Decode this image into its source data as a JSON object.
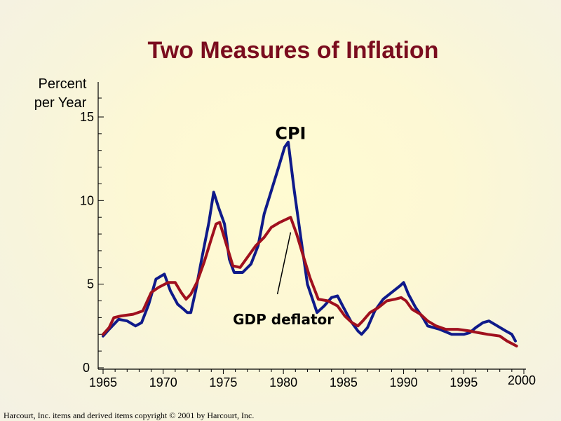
{
  "chart_data": {
    "type": "line",
    "title": "Two Measures of Inflation",
    "ylabel_line1": "Percent",
    "ylabel_line2": "per Year",
    "xlabel": "",
    "xlim": [
      1965,
      2000
    ],
    "ylim": [
      0,
      15
    ],
    "x_ticks": [
      1965,
      1970,
      1975,
      1980,
      1985,
      1990,
      1995,
      2000
    ],
    "x_tick_labels": [
      "1965",
      "1970",
      "1975",
      "1980",
      "1985",
      "1990",
      "1995",
      "2000"
    ],
    "y_ticks": [
      0,
      5,
      10,
      15
    ],
    "y_tick_labels": [
      "0",
      "5",
      "10",
      "15"
    ],
    "grid": false,
    "series": [
      {
        "name": "CPI",
        "color": "#0f1a8a",
        "points": [
          [
            1965.0,
            1.9
          ],
          [
            1965.5,
            2.3
          ],
          [
            1966.3,
            2.9
          ],
          [
            1967.0,
            2.8
          ],
          [
            1967.7,
            2.5
          ],
          [
            1968.2,
            2.7
          ],
          [
            1968.8,
            3.8
          ],
          [
            1969.4,
            5.3
          ],
          [
            1970.1,
            5.6
          ],
          [
            1970.6,
            4.6
          ],
          [
            1971.2,
            3.8
          ],
          [
            1971.7,
            3.5
          ],
          [
            1972.0,
            3.3
          ],
          [
            1972.3,
            3.3
          ],
          [
            1972.7,
            4.6
          ],
          [
            1973.2,
            6.5
          ],
          [
            1973.8,
            8.7
          ],
          [
            1974.2,
            10.5
          ],
          [
            1974.6,
            9.6
          ],
          [
            1975.1,
            8.6
          ],
          [
            1975.5,
            6.5
          ],
          [
            1975.9,
            5.7
          ],
          [
            1976.6,
            5.7
          ],
          [
            1977.3,
            6.2
          ],
          [
            1977.9,
            7.3
          ],
          [
            1978.4,
            9.2
          ],
          [
            1979.0,
            10.6
          ],
          [
            1979.6,
            12.0
          ],
          [
            1980.1,
            13.2
          ],
          [
            1980.4,
            13.5
          ],
          [
            1980.9,
            10.6
          ],
          [
            1981.5,
            7.5
          ],
          [
            1982.0,
            5.0
          ],
          [
            1982.8,
            3.3
          ],
          [
            1983.4,
            3.7
          ],
          [
            1984.0,
            4.2
          ],
          [
            1984.5,
            4.3
          ],
          [
            1985.0,
            3.6
          ],
          [
            1985.6,
            2.8
          ],
          [
            1986.2,
            2.2
          ],
          [
            1986.5,
            2.0
          ],
          [
            1987.0,
            2.4
          ],
          [
            1987.6,
            3.4
          ],
          [
            1988.3,
            4.1
          ],
          [
            1989.0,
            4.5
          ],
          [
            1989.7,
            4.9
          ],
          [
            1990.0,
            5.1
          ],
          [
            1990.4,
            4.4
          ],
          [
            1991.0,
            3.6
          ],
          [
            1991.6,
            3.0
          ],
          [
            1992.0,
            2.5
          ],
          [
            1993.0,
            2.3
          ],
          [
            1994.0,
            2.0
          ],
          [
            1995.0,
            2.0
          ],
          [
            1995.5,
            2.1
          ],
          [
            1996.0,
            2.4
          ],
          [
            1996.6,
            2.7
          ],
          [
            1997.1,
            2.8
          ],
          [
            1997.8,
            2.5
          ],
          [
            1998.5,
            2.2
          ],
          [
            1999.0,
            2.0
          ],
          [
            1999.3,
            1.6
          ]
        ]
      },
      {
        "name": "GDP deflator",
        "color": "#a0101e",
        "points": [
          [
            1965.0,
            2.0
          ],
          [
            1965.5,
            2.4
          ],
          [
            1965.9,
            3.0
          ],
          [
            1966.5,
            3.1
          ],
          [
            1967.5,
            3.2
          ],
          [
            1968.3,
            3.4
          ],
          [
            1969.0,
            4.5
          ],
          [
            1969.6,
            4.8
          ],
          [
            1970.4,
            5.1
          ],
          [
            1971.0,
            5.1
          ],
          [
            1971.5,
            4.5
          ],
          [
            1971.9,
            4.1
          ],
          [
            1972.3,
            4.4
          ],
          [
            1972.8,
            5.1
          ],
          [
            1973.4,
            6.3
          ],
          [
            1974.0,
            7.7
          ],
          [
            1974.4,
            8.6
          ],
          [
            1974.7,
            8.7
          ],
          [
            1975.2,
            7.5
          ],
          [
            1975.8,
            6.1
          ],
          [
            1976.4,
            6.0
          ],
          [
            1977.0,
            6.6
          ],
          [
            1977.7,
            7.3
          ],
          [
            1978.4,
            7.8
          ],
          [
            1979.0,
            8.4
          ],
          [
            1979.7,
            8.7
          ],
          [
            1980.3,
            8.9
          ],
          [
            1980.6,
            9.0
          ],
          [
            1981.1,
            8.0
          ],
          [
            1981.6,
            6.8
          ],
          [
            1982.2,
            5.4
          ],
          [
            1982.9,
            4.1
          ],
          [
            1983.7,
            4.0
          ],
          [
            1984.5,
            3.7
          ],
          [
            1985.1,
            3.1
          ],
          [
            1985.7,
            2.7
          ],
          [
            1986.2,
            2.5
          ],
          [
            1986.6,
            2.8
          ],
          [
            1987.2,
            3.3
          ],
          [
            1987.9,
            3.6
          ],
          [
            1988.6,
            4.0
          ],
          [
            1989.3,
            4.1
          ],
          [
            1989.8,
            4.2
          ],
          [
            1990.2,
            4.0
          ],
          [
            1990.7,
            3.5
          ],
          [
            1991.4,
            3.2
          ],
          [
            1992.0,
            2.8
          ],
          [
            1992.7,
            2.5
          ],
          [
            1993.5,
            2.3
          ],
          [
            1994.5,
            2.3
          ],
          [
            1995.5,
            2.2
          ],
          [
            1996.2,
            2.1
          ],
          [
            1997.0,
            2.0
          ],
          [
            1998.0,
            1.9
          ],
          [
            1998.6,
            1.6
          ],
          [
            1999.4,
            1.3
          ]
        ]
      }
    ],
    "annotations": [
      {
        "text": "CPI",
        "x": 1980.6,
        "y": 14.1
      },
      {
        "text": "GDP deflator",
        "x": 1980.0,
        "y": 2.9,
        "pointer": [
          [
            1979.5,
            4.4
          ],
          [
            1980.6,
            8.1
          ]
        ]
      }
    ]
  },
  "footer": {
    "copyright": "Harcourt, Inc. items and derived items copyright © 2001  by Harcourt, Inc."
  }
}
